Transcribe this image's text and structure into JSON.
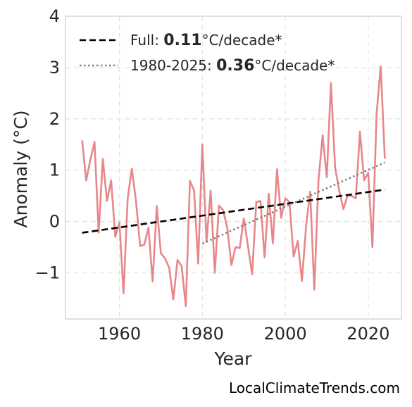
{
  "chart_data": {
    "type": "line",
    "title": "",
    "xlabel": "Year",
    "ylabel": "Anomaly (°C)",
    "xlim": [
      1947,
      2028
    ],
    "ylim": [
      -1.9,
      4
    ],
    "xticks": [
      1960,
      1980,
      2000,
      2020
    ],
    "xtick_labels": [
      "1960",
      "1980",
      "2000",
      "2020"
    ],
    "yticks": [
      -1,
      0,
      1,
      2,
      3,
      4
    ],
    "ytick_labels": [
      "−1",
      "0",
      "1",
      "2",
      "3",
      "4"
    ],
    "grid": true,
    "legend_position": "top-left",
    "series": [
      {
        "color": "#e8878a",
        "x": [
          1951,
          1952,
          1953,
          1954,
          1955,
          1956,
          1957,
          1958,
          1959,
          1960,
          1961,
          1962,
          1963,
          1964,
          1965,
          1966,
          1967,
          1968,
          1969,
          1970,
          1971,
          1972,
          1973,
          1974,
          1975,
          1976,
          1977,
          1978,
          1979,
          1980,
          1981,
          1982,
          1983,
          1984,
          1985,
          1986,
          1987,
          1988,
          1989,
          1990,
          1991,
          1992,
          1993,
          1994,
          1995,
          1996,
          1997,
          1998,
          1999,
          2000,
          2001,
          2002,
          2003,
          2004,
          2005,
          2006,
          2007,
          2008,
          2009,
          2010,
          2011,
          2012,
          2013,
          2014,
          2015,
          2016,
          2017,
          2018,
          2019,
          2020,
          2021,
          2022,
          2023,
          2024
        ],
        "y": [
          1.58,
          0.8,
          1.2,
          1.55,
          -0.22,
          1.22,
          0.4,
          0.8,
          -0.3,
          -0.02,
          -1.4,
          0.45,
          1.03,
          0.4,
          -0.48,
          -0.45,
          -0.12,
          -1.17,
          0.3,
          -0.62,
          -0.72,
          -0.9,
          -1.52,
          -0.75,
          -0.87,
          -1.65,
          0.79,
          0.6,
          -0.82,
          1.5,
          -0.4,
          0.6,
          -1.0,
          0.31,
          0.22,
          -0.12,
          -0.85,
          -0.5,
          -0.52,
          0.06,
          -0.48,
          -1.03,
          0.38,
          0.4,
          -0.7,
          0.54,
          -0.43,
          1.02,
          0.07,
          0.45,
          0.38,
          -0.68,
          -0.38,
          -1.16,
          -0.1,
          0.58,
          -1.33,
          0.8,
          1.68,
          0.86,
          2.7,
          1.05,
          0.6,
          0.24,
          0.5,
          0.5,
          0.45,
          1.75,
          0.8,
          0.95,
          -0.5,
          2.1,
          3.02,
          1.22
        ]
      }
    ],
    "trend_lines": [
      {
        "label_prefix": "Full: ",
        "label_value": "0.11",
        "label_suffix": "°C/decade*",
        "style": "dashed",
        "color": "#000000",
        "x": [
          1951,
          2024
        ],
        "y": [
          -0.22,
          0.62
        ]
      },
      {
        "label_prefix": "1980-2025: ",
        "label_value": "0.36",
        "label_suffix": "°C/decade*",
        "style": "dotted",
        "color": "#808080",
        "x": [
          1980,
          2024
        ],
        "y": [
          -0.43,
          1.15
        ]
      }
    ],
    "credit": "LocalClimateTrends.com"
  }
}
